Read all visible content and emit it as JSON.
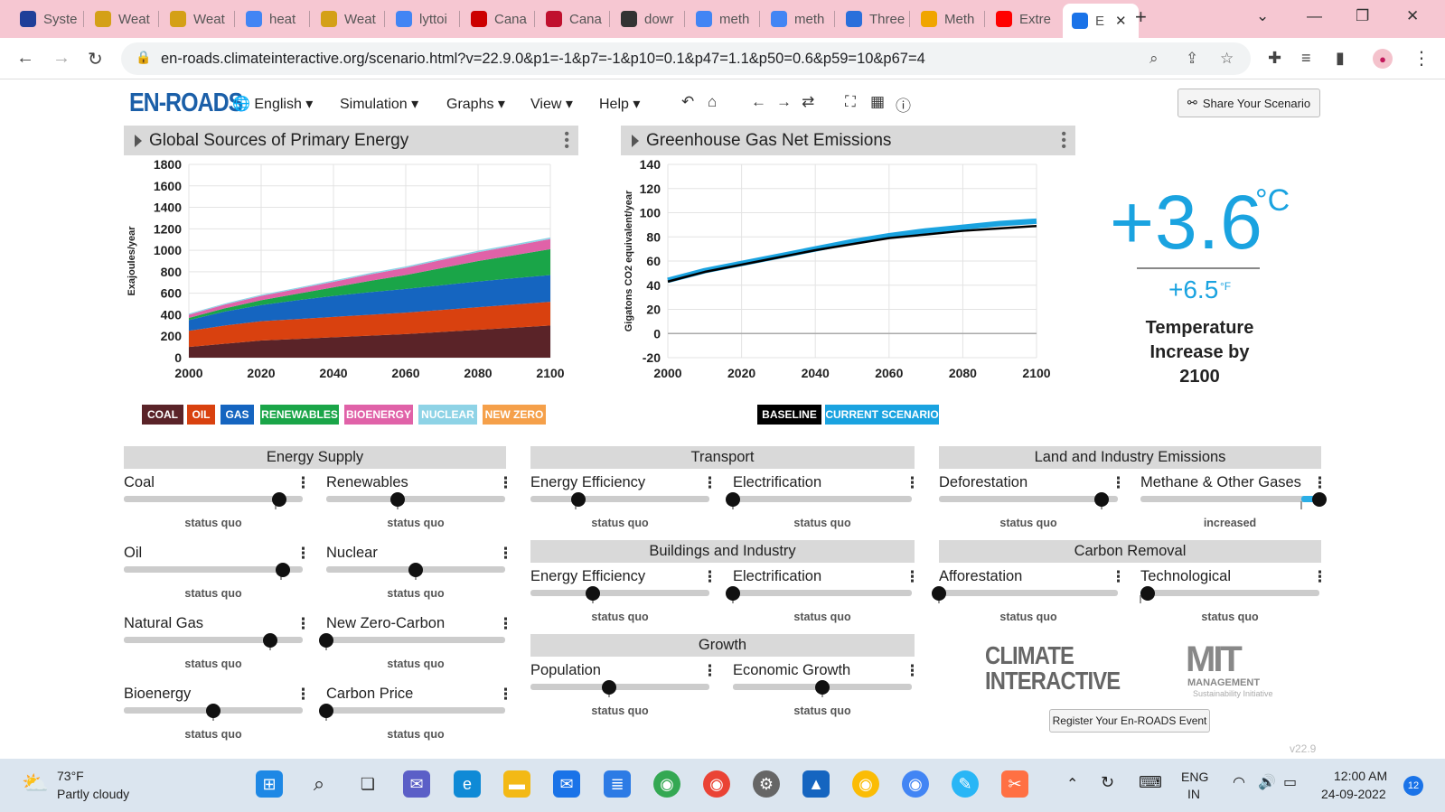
{
  "browser": {
    "tabs": [
      {
        "label": "Syste",
        "icon": "eu-flag-icon",
        "color": "#1f3f99"
      },
      {
        "label": "Weat",
        "icon": "weather-icon",
        "color": "#d4a017"
      },
      {
        "label": "Weat",
        "icon": "weather-icon",
        "color": "#d4a017"
      },
      {
        "label": "heat",
        "icon": "google-icon",
        "color": "#4285f4"
      },
      {
        "label": "Weat",
        "icon": "weather-icon",
        "color": "#d4a017"
      },
      {
        "label": "lyttoi",
        "icon": "google-icon",
        "color": "#4285f4"
      },
      {
        "label": "Cana",
        "icon": "cnn-icon",
        "color": "#cc0000"
      },
      {
        "label": "Cana",
        "icon": "sky-news-icon",
        "color": "#c0102e"
      },
      {
        "label": "dowr",
        "icon": "globe-icon",
        "color": "#333333"
      },
      {
        "label": "meth",
        "icon": "google-icon",
        "color": "#4285f4"
      },
      {
        "label": "meth",
        "icon": "google-icon",
        "color": "#4285f4"
      },
      {
        "label": "Three",
        "icon": "p-icon",
        "color": "#2a6fdb"
      },
      {
        "label": "Meth",
        "icon": "shield-icon",
        "color": "#f0a500"
      },
      {
        "label": "Extre",
        "icon": "youtube-icon",
        "color": "#ff0000"
      },
      {
        "label": "E",
        "icon": "loading-icon",
        "color": "#1a73e8"
      }
    ],
    "url": "en-roads.climateinteractive.org/scenario.html?v=22.9.0&p1=-1&p7=-1&p10=0.1&p47=1.1&p50=0.6&p59=10&p67=4"
  },
  "app": {
    "logo": "EN-ROADS",
    "menus": [
      "English",
      "Simulation",
      "Graphs",
      "View",
      "Help"
    ],
    "share_label": "Share Your Scenario"
  },
  "charts": {
    "left_title": "Global Sources of Primary Energy",
    "right_title": "Greenhouse Gas Net Emissions",
    "left_legend": [
      {
        "label": "COAL",
        "color": "#5a2328"
      },
      {
        "label": "OIL",
        "color": "#d9410f"
      },
      {
        "label": "GAS",
        "color": "#1565c0"
      },
      {
        "label": "RENEWABLES",
        "color": "#1aa548"
      },
      {
        "label": "BIOENERGY",
        "color": "#e062a8"
      },
      {
        "label": "NUCLEAR",
        "color": "#8ed3e6"
      },
      {
        "label": "NEW ZERO",
        "color": "#f5a04a"
      }
    ],
    "right_legend": [
      {
        "label": "BASELINE",
        "color": "#000000"
      },
      {
        "label": "CURRENT SCENARIO",
        "color": "#1aa3e0"
      }
    ]
  },
  "chart_data": [
    {
      "type": "area",
      "title": "Global Sources of Primary Energy",
      "ylabel": "Exajoules/year",
      "xlabel": "",
      "x": [
        2000,
        2010,
        2020,
        2030,
        2040,
        2050,
        2060,
        2070,
        2080,
        2090,
        2100
      ],
      "xlim": [
        2000,
        2100
      ],
      "ylim": [
        0,
        1800
      ],
      "xticks": [
        2000,
        2020,
        2040,
        2060,
        2080,
        2100
      ],
      "yticks": [
        0,
        200,
        400,
        600,
        800,
        1000,
        1200,
        1400,
        1600,
        1800
      ],
      "series": [
        {
          "name": "COAL",
          "color": "#5a2328",
          "values": [
            100,
            130,
            160,
            175,
            190,
            205,
            220,
            240,
            260,
            280,
            300
          ]
        },
        {
          "name": "OIL",
          "color": "#d9410f",
          "values": [
            150,
            170,
            180,
            185,
            190,
            195,
            200,
            205,
            210,
            215,
            220
          ]
        },
        {
          "name": "GAS",
          "color": "#1565c0",
          "values": [
            100,
            130,
            150,
            175,
            195,
            210,
            220,
            230,
            240,
            245,
            250
          ]
        },
        {
          "name": "RENEWABLES",
          "color": "#1aa548",
          "values": [
            20,
            30,
            45,
            60,
            80,
            105,
            130,
            160,
            190,
            215,
            240
          ]
        },
        {
          "name": "BIOENERGY",
          "color": "#e062a8",
          "values": [
            30,
            35,
            40,
            45,
            52,
            60,
            67,
            75,
            82,
            88,
            95
          ]
        },
        {
          "name": "NUCLEAR",
          "color": "#8ed3e6",
          "values": [
            10,
            10,
            11,
            11,
            12,
            12,
            13,
            13,
            14,
            14,
            15
          ]
        }
      ],
      "grid": true
    },
    {
      "type": "line",
      "title": "Greenhouse Gas Net Emissions",
      "ylabel": "Gigatons CO2 equivalent/year",
      "xlabel": "",
      "x": [
        2000,
        2005,
        2010,
        2015,
        2020,
        2030,
        2040,
        2050,
        2060,
        2070,
        2080,
        2090,
        2100
      ],
      "xlim": [
        2000,
        2100
      ],
      "ylim": [
        -20,
        140
      ],
      "xticks": [
        2000,
        2020,
        2040,
        2060,
        2080,
        2100
      ],
      "yticks": [
        -20,
        0,
        20,
        40,
        60,
        80,
        100,
        120,
        140
      ],
      "series": [
        {
          "name": "BASELINE",
          "color": "#000000",
          "values": [
            43,
            47,
            51,
            54,
            57,
            63,
            69,
            74,
            79,
            82,
            85,
            87,
            89
          ]
        },
        {
          "name": "CURRENT SCENARIO",
          "color": "#1aa3e0",
          "values": [
            44,
            48,
            52,
            55,
            58,
            64,
            70,
            76,
            81,
            85,
            88,
            91,
            93
          ]
        }
      ],
      "grid": true
    }
  ],
  "temperature": {
    "celsius": "+3.6",
    "celsius_unit": "°C",
    "fahrenheit": "+6.5",
    "fahrenheit_unit": "°F",
    "label": "Temperature Increase by 2100"
  },
  "groups": [
    {
      "title": "Energy Supply"
    },
    {
      "title": "Transport"
    },
    {
      "title": "Land and Industry Emissions"
    },
    {
      "title": "Buildings and Industry"
    },
    {
      "title": "Carbon Removal"
    },
    {
      "title": "Growth"
    }
  ],
  "sliders": [
    {
      "label": "Coal",
      "status": "status quo",
      "level": 0.87,
      "tick": 0.85
    },
    {
      "label": "Renewables",
      "status": "status quo",
      "level": 0.4,
      "tick": 0.4
    },
    {
      "label": "Oil",
      "status": "status quo",
      "level": 0.89,
      "tick": 0.88
    },
    {
      "label": "Nuclear",
      "status": "status quo",
      "level": 0.5,
      "tick": 0.5
    },
    {
      "label": "Natural Gas",
      "status": "status quo",
      "level": 0.82,
      "tick": 0.82
    },
    {
      "label": "New Zero-Carbon",
      "status": "status quo",
      "level": 0.0,
      "tick": 0.0
    },
    {
      "label": "Bioenergy",
      "status": "status quo",
      "level": 0.5,
      "tick": 0.5
    },
    {
      "label": "Carbon Price",
      "status": "status quo",
      "level": 0.0,
      "tick": 0.0
    },
    {
      "label": "Energy Efficiency",
      "status": "status quo",
      "level": 0.27,
      "tick": 0.25
    },
    {
      "label": "Electrification",
      "status": "status quo",
      "level": 0.0,
      "tick": 0.0
    },
    {
      "label": "Energy Efficiency",
      "status": "status quo",
      "level": 0.35,
      "tick": 0.35
    },
    {
      "label": "Electrification",
      "status": "status quo",
      "level": 0.0,
      "tick": 0.0
    },
    {
      "label": "Population",
      "status": "status quo",
      "level": 0.44,
      "tick": 0.44
    },
    {
      "label": "Economic Growth",
      "status": "status quo",
      "level": 0.5,
      "tick": 0.5
    },
    {
      "label": "Deforestation",
      "status": "status quo",
      "level": 0.91,
      "tick": 0.91
    },
    {
      "label": "Methane & Other Gases",
      "status": "increased",
      "level": 1.0,
      "tick": 0.9
    },
    {
      "label": "Afforestation",
      "status": "status quo",
      "level": 0.0,
      "tick": 0.0
    },
    {
      "label": "Technological",
      "status": "status quo",
      "level": 0.04,
      "tick": 0.0
    }
  ],
  "logos": {
    "climate_interactive": [
      "CLIMATE",
      "INTERACTIVE"
    ],
    "mit": "MIT",
    "mit_sub": "MANAGEMENT",
    "mit_sub2": "Sustainability Initiative"
  },
  "register_label": "Register Your En-ROADS Event",
  "version": "v22.9",
  "taskbar": {
    "weather_temp": "73°F",
    "weather_desc": "Partly cloudy",
    "lang_1": "ENG",
    "lang_2": "IN",
    "time": "12:00 AM",
    "date": "24-09-2022",
    "notif_count": "12"
  }
}
